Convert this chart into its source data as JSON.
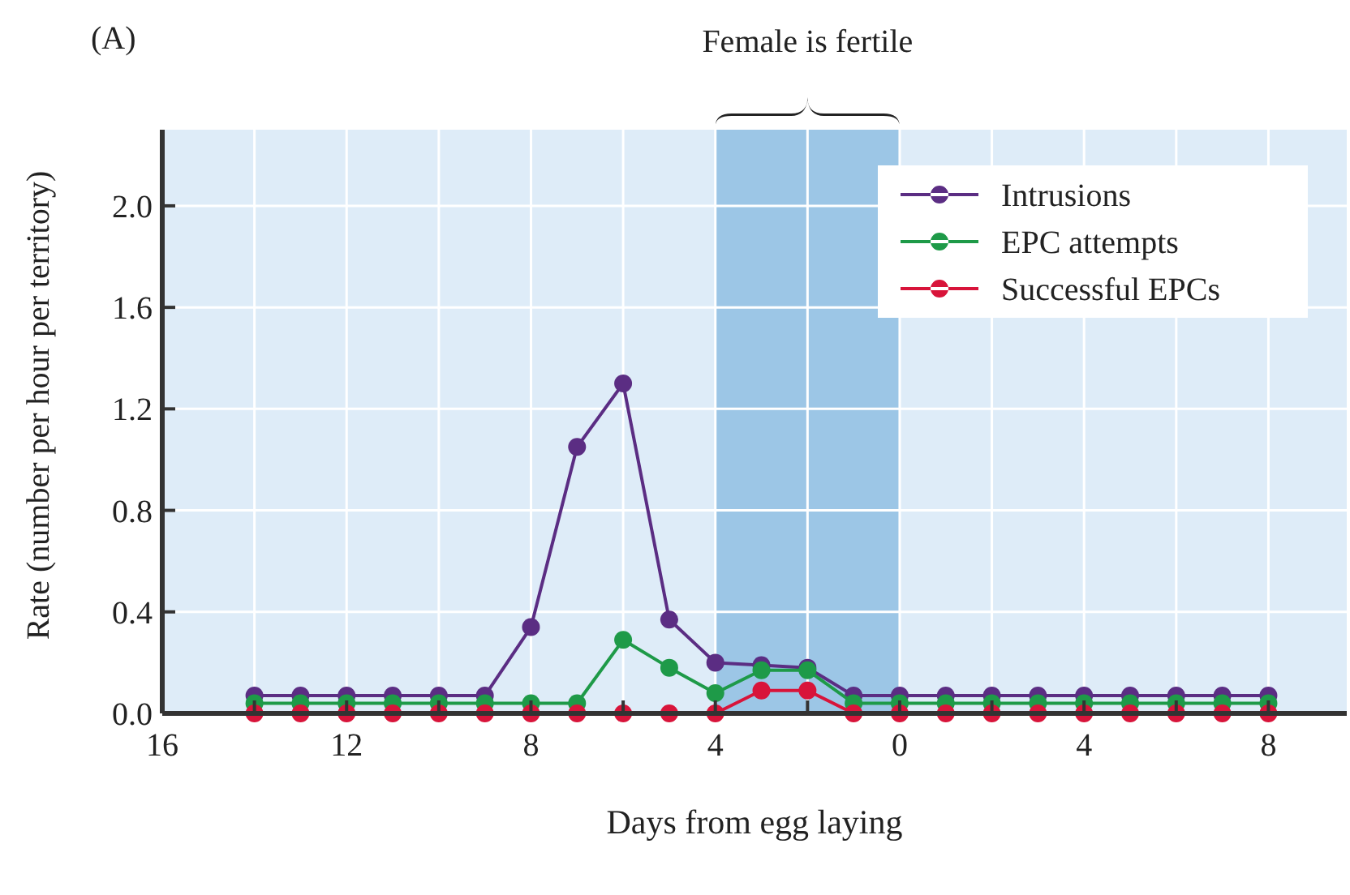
{
  "chart_data": {
    "type": "line",
    "title": "(A)",
    "xlabel": "Days from egg laying",
    "ylabel": "Rate (number per hour per territory)",
    "x": [
      -14,
      -13,
      -12,
      -11,
      -10,
      -9,
      -8,
      -7,
      -6,
      -5,
      -4,
      -3,
      -2,
      -1,
      0,
      1,
      2,
      3,
      4,
      5,
      6,
      7,
      8
    ],
    "series": [
      {
        "name": "Intrusions",
        "color": "#5b2d83",
        "values": [
          0.07,
          0.07,
          0.07,
          0.07,
          0.07,
          0.07,
          0.34,
          1.05,
          1.3,
          0.37,
          0.2,
          0.19,
          0.18,
          0.07,
          0.07,
          0.07,
          0.07,
          0.07,
          0.07,
          0.07,
          0.07,
          0.07,
          0.07
        ]
      },
      {
        "name": "EPC attempts",
        "color": "#1e9a48",
        "values": [
          0.04,
          0.04,
          0.04,
          0.04,
          0.04,
          0.04,
          0.04,
          0.04,
          0.29,
          0.18,
          0.08,
          0.17,
          0.17,
          0.04,
          0.04,
          0.04,
          0.04,
          0.04,
          0.04,
          0.04,
          0.04,
          0.04,
          0.04
        ]
      },
      {
        "name": "Successful EPCs",
        "color": "#d8143a",
        "values": [
          0,
          0,
          0,
          0,
          0,
          0,
          0,
          0,
          0,
          0,
          0,
          0.09,
          0.09,
          0,
          0,
          0,
          0,
          0,
          0,
          0,
          0,
          0,
          0
        ]
      }
    ],
    "xlim": [
      -16,
      9.7
    ],
    "ylim": [
      0,
      2.3
    ],
    "xticks": [
      {
        "value": -16,
        "label": "16"
      },
      {
        "value": -14,
        "label": null
      },
      {
        "value": -12,
        "label": "12"
      },
      {
        "value": -10,
        "label": null
      },
      {
        "value": -8,
        "label": "8"
      },
      {
        "value": -6,
        "label": null
      },
      {
        "value": -4,
        "label": "4"
      },
      {
        "value": -2,
        "label": null
      },
      {
        "value": 0,
        "label": "0"
      },
      {
        "value": 2,
        "label": null
      },
      {
        "value": 4,
        "label": "4"
      },
      {
        "value": 6,
        "label": null
      },
      {
        "value": 8,
        "label": "8"
      }
    ],
    "yticks": [
      {
        "value": 0,
        "label": "0.0"
      },
      {
        "value": 0.4,
        "label": "0.4"
      },
      {
        "value": 0.8,
        "label": "0.8"
      },
      {
        "value": 1.2,
        "label": "1.2"
      },
      {
        "value": 1.6,
        "label": "1.6"
      },
      {
        "value": 2,
        "label": "2.0"
      }
    ],
    "bands": [
      {
        "axis": "x",
        "from": -4,
        "to": 0,
        "label": "Female is fertile",
        "color": "#9cc6e6"
      }
    ],
    "grid": true,
    "legend": "top right",
    "marker": "circle",
    "line_style": "solid"
  }
}
